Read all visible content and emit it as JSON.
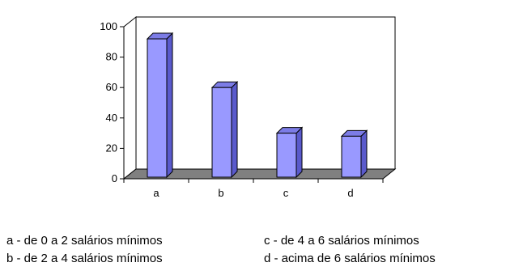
{
  "chart_data": {
    "type": "bar",
    "style": "3d-column",
    "title": "",
    "xlabel": "",
    "ylabel": "",
    "categories": [
      "a",
      "b",
      "c",
      "d"
    ],
    "values": [
      92,
      60,
      30,
      28
    ],
    "ylim": [
      0,
      100
    ],
    "yticks": [
      0,
      20,
      40,
      60,
      80,
      100
    ],
    "grid": false,
    "legend_position": "bottom",
    "colors": {
      "bar_front": "#9999ff",
      "bar_side": "#5a5acc",
      "bar_top": "#7c7ce6",
      "floor": "#808080",
      "back_wall": "#ffffff",
      "outline": "#000000"
    }
  },
  "legend": {
    "a": "a - de 0 a 2 salários mínimos",
    "b": "b - de 2 a 4 salários mínimos",
    "c": "c - de 4 a 6 salários mínimos",
    "d": "d - acima de 6 salários mínimos"
  }
}
